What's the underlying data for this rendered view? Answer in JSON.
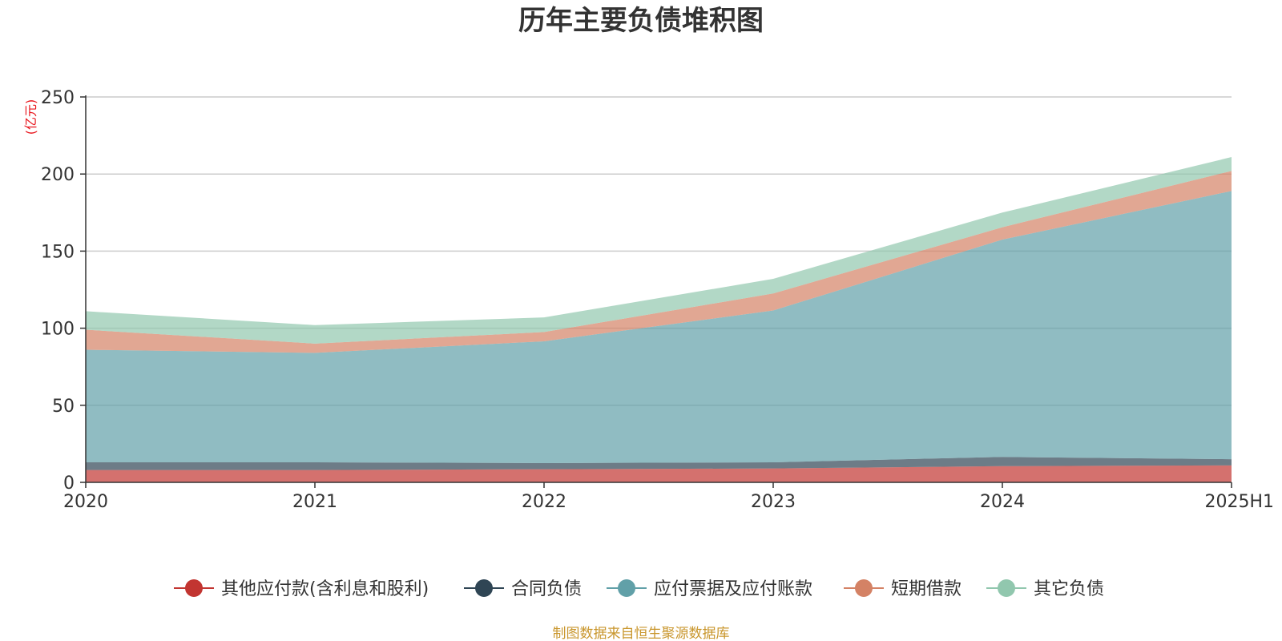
{
  "chart_data": {
    "type": "area",
    "stacked": true,
    "title": "历年主要负债堆积图",
    "unit_label": "(亿元)",
    "source": "制图数据来自恒生聚源数据库",
    "categories": [
      "2020",
      "2021",
      "2022",
      "2023",
      "2024",
      "2025H1"
    ],
    "ylim": [
      0,
      250
    ],
    "y_ticks": [
      0,
      50,
      100,
      150,
      200,
      250
    ],
    "grid": true,
    "legend_position": "bottom",
    "series": [
      {
        "name": "其他应付款(含利息和股利)",
        "color": "#c23531",
        "values": [
          8,
          8,
          8.5,
          9,
          10.5,
          11
        ]
      },
      {
        "name": "合同负债",
        "color": "#2f4554",
        "values": [
          5,
          5,
          4,
          4,
          6,
          4
        ]
      },
      {
        "name": "应付票据及应付账款",
        "color": "#61a0a8",
        "values": [
          73,
          71,
          79,
          98.5,
          141,
          174
        ]
      },
      {
        "name": "短期借款",
        "color": "#d48265",
        "values": [
          13,
          6,
          6,
          11,
          8,
          13
        ]
      },
      {
        "name": "其它负债",
        "color": "#91c7ae",
        "values": [
          12,
          12,
          9.5,
          9.5,
          9.5,
          9
        ]
      }
    ]
  }
}
